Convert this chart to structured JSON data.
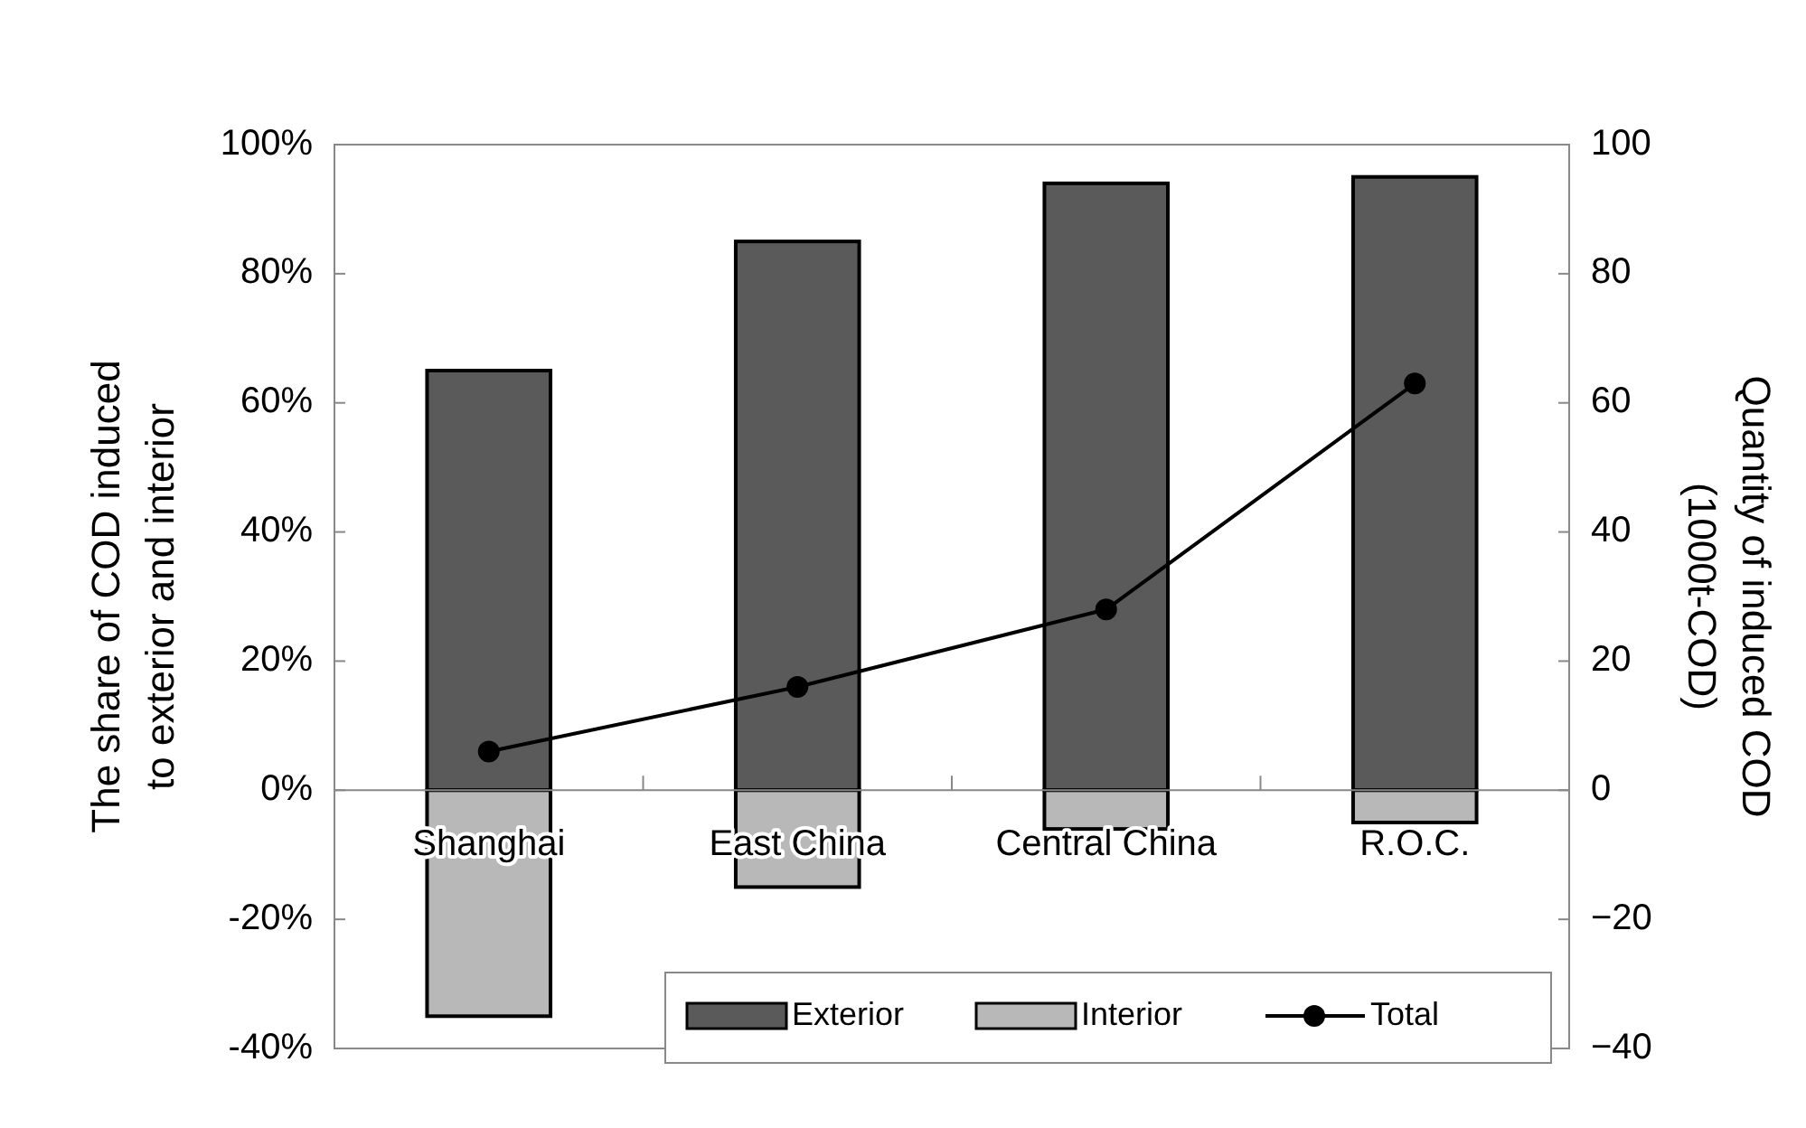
{
  "chart_data": {
    "type": "bar",
    "categories": [
      "Shanghai",
      "East China",
      "Central China",
      "R.O.C."
    ],
    "stacked": true,
    "ylabel": "The share of COD induced\nto exterior and interior",
    "y2label": "Quantity of induced COD\n(1000t-COD)",
    "ylim": [
      -40,
      100
    ],
    "yticks": [
      {
        "value": -40,
        "label": "-40%"
      },
      {
        "value": -20,
        "label": "-20%"
      },
      {
        "value": 0,
        "label": "0%"
      },
      {
        "value": 20,
        "label": "20%"
      },
      {
        "value": 40,
        "label": "40%"
      },
      {
        "value": 60,
        "label": "60%"
      },
      {
        "value": 80,
        "label": "80%"
      },
      {
        "value": 100,
        "label": "100%"
      }
    ],
    "y2lim": [
      -40,
      100
    ],
    "y2ticks": [
      {
        "value": -40,
        "label": "−40"
      },
      {
        "value": -20,
        "label": "−20"
      },
      0,
      20,
      40,
      60,
      80,
      100
    ],
    "series": [
      {
        "name": "Exterior",
        "color": "#5a5a5a",
        "values": [
          65,
          85,
          94,
          95
        ]
      },
      {
        "name": "Interior",
        "color": "#b8b8b8",
        "values": [
          -35,
          -15,
          -6,
          -5
        ]
      },
      {
        "name": "Total",
        "type": "line",
        "axis": "y2",
        "color": "#000000",
        "values": [
          6,
          16,
          28,
          63
        ]
      }
    ],
    "marker": "circle",
    "line_style": "solid",
    "grid": false,
    "legend": "bottom right"
  }
}
